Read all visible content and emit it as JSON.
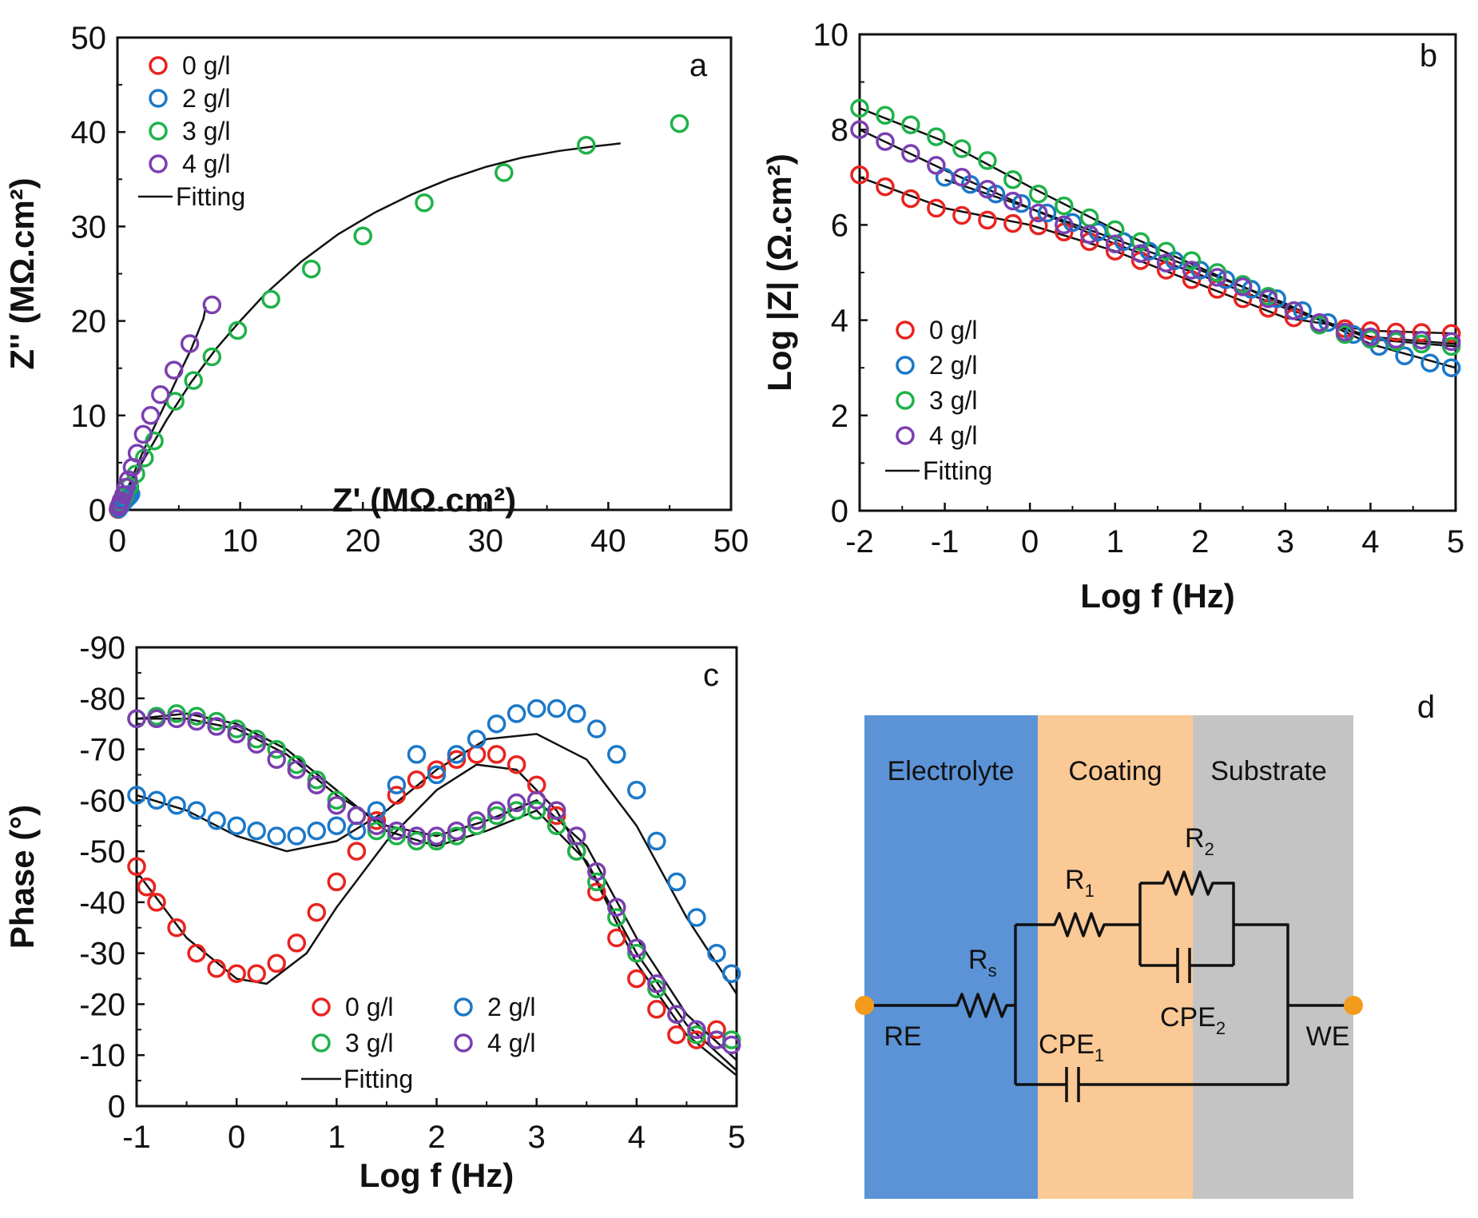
{
  "colors": {
    "zero": "#e8231f",
    "two": "#1b78c8",
    "three": "#1fb24a",
    "four": "#7b3fb0",
    "fit": "#111111",
    "electrolyte": "#5b93d6",
    "coating": "#fbc995",
    "substrate": "#c4c4c4",
    "node": "#f39b1d"
  },
  "legend_labels": {
    "zero": "0 g/l",
    "two": "2 g/l",
    "three": "3 g/l",
    "four": "4 g/l",
    "fit": "Fitting"
  },
  "chart_data": [
    {
      "id": "a",
      "type": "scatter",
      "panel_label": "a",
      "title": "",
      "xlabel": "Z' (MΩ.cm²)",
      "ylabel": "Z'' (MΩ.cm²)",
      "xlim": [
        0,
        50
      ],
      "ylim": [
        0,
        50
      ],
      "xticks": [
        0,
        10,
        20,
        30,
        40,
        50
      ],
      "yticks": [
        0,
        10,
        20,
        30,
        40,
        50
      ],
      "legend_position": "top-left",
      "series": [
        {
          "name": "0 g/l",
          "color_key": "zero",
          "x": [
            0.05,
            0.1,
            0.15,
            0.2,
            0.25,
            0.3,
            0.35
          ],
          "y": [
            0.05,
            0.15,
            0.3,
            0.45,
            0.6,
            0.75,
            0.9
          ]
        },
        {
          "name": "2 g/l",
          "color_key": "two",
          "x": [
            0.1,
            0.2,
            0.3,
            0.4,
            0.55,
            0.7,
            0.85,
            1.0,
            1.1
          ],
          "y": [
            0.1,
            0.3,
            0.5,
            0.7,
            0.9,
            1.1,
            1.3,
            1.5,
            1.7
          ]
        },
        {
          "name": "3 g/l",
          "color_key": "three",
          "x": [
            0.3,
            0.6,
            1.0,
            1.5,
            2.2,
            3.0,
            4.7,
            6.2,
            7.7,
            9.8,
            12.5,
            15.8,
            20.0,
            25.0,
            31.5,
            38.2,
            45.8
          ],
          "y": [
            0.8,
            1.5,
            2.5,
            3.8,
            5.5,
            7.3,
            11.5,
            13.7,
            16.2,
            19.0,
            22.3,
            25.5,
            29.0,
            32.5,
            35.7,
            38.6,
            40.9
          ]
        },
        {
          "name": "4 g/l",
          "color_key": "four",
          "x": [
            0.1,
            0.2,
            0.3,
            0.5,
            0.7,
            0.9,
            1.2,
            1.6,
            2.1,
            2.7,
            3.5,
            4.6,
            5.9,
            7.7
          ],
          "y": [
            0.3,
            0.6,
            1.0,
            1.6,
            2.4,
            3.2,
            4.5,
            6.0,
            8.0,
            10.0,
            12.2,
            14.8,
            17.6,
            21.7
          ]
        }
      ],
      "fits": [
        {
          "name": "Fitting 3 g/l",
          "x": [
            0,
            2,
            4,
            6,
            8,
            10,
            12,
            15,
            18,
            21,
            24,
            27,
            30,
            33,
            36,
            39,
            41
          ],
          "y": [
            0,
            5.0,
            9.5,
            13.5,
            17.0,
            20.0,
            22.8,
            26.3,
            29.2,
            31.5,
            33.4,
            35.0,
            36.3,
            37.3,
            38.0,
            38.5,
            38.8
          ]
        },
        {
          "name": "Fitting 4 g/l",
          "x": [
            0,
            1,
            2,
            3,
            4,
            5,
            6,
            7,
            7.2
          ],
          "y": [
            0,
            2.8,
            5.9,
            8.8,
            11.5,
            14.3,
            17.0,
            20.2,
            21.5
          ]
        }
      ]
    },
    {
      "id": "b",
      "type": "scatter",
      "panel_label": "b",
      "title": "",
      "xlabel": "Log f (Hz)",
      "ylabel": "Log |Z| (Ω.cm²)",
      "xlim": [
        -2,
        5
      ],
      "ylim": [
        0,
        10
      ],
      "xticks": [
        -2,
        -1,
        0,
        1,
        2,
        3,
        4,
        5
      ],
      "yticks": [
        0,
        2,
        4,
        6,
        8,
        10
      ],
      "legend_position": "bottom-left",
      "series": [
        {
          "name": "0 g/l",
          "color_key": "zero",
          "x": [
            -2.0,
            -1.7,
            -1.4,
            -1.1,
            -0.8,
            -0.5,
            -0.2,
            0.1,
            0.4,
            0.7,
            1.0,
            1.3,
            1.6,
            1.9,
            2.2,
            2.5,
            2.8,
            3.1,
            3.4,
            3.7,
            4.0,
            4.3,
            4.6,
            4.95
          ],
          "y": [
            7.05,
            6.8,
            6.55,
            6.35,
            6.2,
            6.1,
            6.03,
            5.98,
            5.85,
            5.65,
            5.45,
            5.25,
            5.05,
            4.85,
            4.65,
            4.45,
            4.25,
            4.05,
            3.9,
            3.82,
            3.78,
            3.75,
            3.74,
            3.72
          ]
        },
        {
          "name": "2 g/l",
          "color_key": "two",
          "x": [
            -1.0,
            -0.7,
            -0.4,
            -0.1,
            0.2,
            0.5,
            0.8,
            1.1,
            1.4,
            1.7,
            2.0,
            2.3,
            2.6,
            2.9,
            3.2,
            3.5,
            3.8,
            4.1,
            4.4,
            4.7,
            4.95
          ],
          "y": [
            7.0,
            6.85,
            6.65,
            6.45,
            6.25,
            6.05,
            5.85,
            5.65,
            5.45,
            5.25,
            5.05,
            4.85,
            4.65,
            4.45,
            4.2,
            3.95,
            3.7,
            3.45,
            3.25,
            3.1,
            3.0
          ]
        },
        {
          "name": "3 g/l",
          "color_key": "three",
          "x": [
            -2.0,
            -1.7,
            -1.4,
            -1.1,
            -0.8,
            -0.5,
            -0.2,
            0.1,
            0.4,
            0.7,
            1.0,
            1.3,
            1.6,
            1.9,
            2.2,
            2.5,
            2.8,
            3.1,
            3.4,
            3.7,
            4.0,
            4.3,
            4.6,
            4.95
          ],
          "y": [
            8.45,
            8.3,
            8.1,
            7.85,
            7.6,
            7.35,
            6.95,
            6.65,
            6.4,
            6.15,
            5.9,
            5.65,
            5.45,
            5.25,
            5.0,
            4.75,
            4.5,
            4.2,
            3.9,
            3.7,
            3.6,
            3.55,
            3.5,
            3.45
          ]
        },
        {
          "name": "4 g/l",
          "color_key": "four",
          "x": [
            -2.0,
            -1.7,
            -1.4,
            -1.1,
            -0.8,
            -0.5,
            -0.2,
            0.1,
            0.4,
            0.7,
            1.0,
            1.3,
            1.6,
            1.9,
            2.2,
            2.5,
            2.8,
            3.1,
            3.4,
            3.7,
            4.0,
            4.3,
            4.6,
            4.95
          ],
          "y": [
            8.0,
            7.75,
            7.5,
            7.25,
            7.0,
            6.75,
            6.5,
            6.25,
            6.0,
            5.8,
            5.6,
            5.4,
            5.2,
            5.05,
            4.9,
            4.7,
            4.45,
            4.2,
            3.95,
            3.75,
            3.65,
            3.6,
            3.58,
            3.55
          ]
        }
      ],
      "fits": [
        {
          "name": "Fitting 0 g/l",
          "x": [
            -2,
            -1,
            0,
            1,
            2,
            3,
            4,
            5
          ],
          "y": [
            7.0,
            6.35,
            6.0,
            5.45,
            4.75,
            4.05,
            3.78,
            3.72
          ]
        },
        {
          "name": "Fitting 3 g/l",
          "x": [
            -2,
            -1,
            0,
            1,
            2,
            3,
            4,
            5
          ],
          "y": [
            8.45,
            7.75,
            6.8,
            5.9,
            5.1,
            4.3,
            3.6,
            3.45
          ]
        },
        {
          "name": "Fitting 4 g/l",
          "x": [
            -2,
            -1,
            0,
            1,
            2,
            3,
            4,
            5
          ],
          "y": [
            8.0,
            7.15,
            6.35,
            5.6,
            4.95,
            4.25,
            3.65,
            3.5
          ]
        },
        {
          "name": "Fitting 2 g/l",
          "x": [
            -1,
            0,
            1,
            2,
            3,
            4,
            5
          ],
          "y": [
            6.95,
            6.35,
            5.7,
            5.05,
            4.35,
            3.5,
            3.0
          ]
        }
      ]
    },
    {
      "id": "c",
      "type": "scatter",
      "panel_label": "c",
      "title": "",
      "xlabel": "Log f (Hz)",
      "ylabel": "Phase (°)",
      "xlim": [
        -1,
        5
      ],
      "ylim": [
        0,
        -90
      ],
      "xticks": [
        -1,
        0,
        1,
        2,
        3,
        4,
        5
      ],
      "yticks": [
        0,
        -10,
        -20,
        -30,
        -40,
        -50,
        -60,
        -70,
        -80,
        -90
      ],
      "legend_position": "bottom-center",
      "series": [
        {
          "name": "0 g/l",
          "color_key": "zero",
          "x": [
            -1.0,
            -0.9,
            -0.8,
            -0.6,
            -0.4,
            -0.2,
            0.0,
            0.2,
            0.4,
            0.6,
            0.8,
            1.0,
            1.2,
            1.4,
            1.6,
            1.8,
            2.0,
            2.2,
            2.4,
            2.6,
            2.8,
            3.0,
            3.2,
            3.4,
            3.6,
            3.8,
            4.0,
            4.2,
            4.4,
            4.6,
            4.8
          ],
          "y": [
            -47,
            -43,
            -40,
            -35,
            -30,
            -27,
            -26,
            -26,
            -28,
            -32,
            -38,
            -44,
            -50,
            -56,
            -61,
            -64,
            -66,
            -68,
            -69,
            -69,
            -67,
            -63,
            -57,
            -50,
            -42,
            -33,
            -25,
            -19,
            -14,
            -13,
            -15
          ]
        },
        {
          "name": "2 g/l",
          "color_key": "two",
          "x": [
            -1.0,
            -0.8,
            -0.6,
            -0.4,
            -0.2,
            0.0,
            0.2,
            0.4,
            0.6,
            0.8,
            1.0,
            1.2,
            1.4,
            1.6,
            1.8,
            2.0,
            2.2,
            2.4,
            2.6,
            2.8,
            3.0,
            3.2,
            3.4,
            3.6,
            3.8,
            4.0,
            4.2,
            4.4,
            4.6,
            4.8,
            4.95
          ],
          "y": [
            -61,
            -60,
            -59,
            -58,
            -56,
            -55,
            -54,
            -53,
            -53,
            -54,
            -55,
            -54,
            -58,
            -63,
            -69,
            -65,
            -69,
            -72,
            -75,
            -77,
            -78,
            -78,
            -77,
            -74,
            -69,
            -62,
            -52,
            -44,
            -37,
            -30,
            -26
          ]
        },
        {
          "name": "3 g/l",
          "color_key": "three",
          "x": [
            -1.0,
            -0.8,
            -0.6,
            -0.4,
            -0.2,
            0.0,
            0.2,
            0.4,
            0.6,
            0.8,
            1.0,
            1.2,
            1.4,
            1.6,
            1.8,
            2.0,
            2.2,
            2.4,
            2.6,
            2.8,
            3.0,
            3.2,
            3.4,
            3.6,
            3.8,
            4.0,
            4.2,
            4.4,
            4.6,
            4.8,
            4.95
          ],
          "y": [
            -76,
            -76.5,
            -77,
            -76.5,
            -75.5,
            -74,
            -72,
            -70,
            -67,
            -64,
            -60,
            -57,
            -54,
            -53,
            -52,
            -52,
            -53,
            -55,
            -57,
            -58,
            -58,
            -55,
            -50,
            -44,
            -37,
            -30,
            -23,
            -18,
            -14,
            -13,
            -13
          ]
        },
        {
          "name": "4 g/l",
          "color_key": "four",
          "x": [
            -1.0,
            -0.8,
            -0.6,
            -0.4,
            -0.2,
            0.0,
            0.2,
            0.4,
            0.6,
            0.8,
            1.0,
            1.2,
            1.4,
            1.6,
            1.8,
            2.0,
            2.2,
            2.4,
            2.6,
            2.8,
            3.0,
            3.2,
            3.4,
            3.6,
            3.8,
            4.0,
            4.2,
            4.4,
            4.6,
            4.8,
            4.95
          ],
          "y": [
            -76,
            -76,
            -76,
            -75.5,
            -74.5,
            -73,
            -71,
            -68,
            -66,
            -63,
            -59,
            -57,
            -55,
            -54,
            -53,
            -53,
            -54,
            -56,
            -58,
            -59.5,
            -60,
            -58,
            -53,
            -46,
            -39,
            -31,
            -24,
            -18,
            -15,
            -13,
            -12
          ]
        }
      ],
      "fits": [
        {
          "name": "Fitting 0 g/l",
          "x": [
            -1,
            -0.5,
            0,
            0.3,
            0.7,
            1,
            1.5,
            2,
            2.4,
            2.8,
            3.2,
            3.6,
            4,
            4.5,
            5
          ],
          "y": [
            -46,
            -33,
            -25,
            -24,
            -30,
            -39,
            -52,
            -62,
            -67,
            -66,
            -58,
            -44,
            -28,
            -14,
            -6
          ]
        },
        {
          "name": "Fitting 2 g/l",
          "x": [
            -1,
            -0.5,
            0,
            0.5,
            1,
            1.5,
            2,
            2.5,
            3,
            3.5,
            4,
            4.5,
            5
          ],
          "y": [
            -61,
            -58,
            -53,
            -50,
            -52,
            -58,
            -66,
            -72,
            -73,
            -68,
            -55,
            -37,
            -22
          ]
        },
        {
          "name": "Fitting 3 g/l",
          "x": [
            -1,
            -0.5,
            0,
            0.5,
            1,
            1.5,
            2,
            2.5,
            3,
            3.5,
            4,
            4.5,
            5
          ],
          "y": [
            -76,
            -77,
            -75,
            -70,
            -62,
            -54,
            -51,
            -54,
            -58,
            -48,
            -30,
            -16,
            -7
          ]
        },
        {
          "name": "Fitting 4 g/l",
          "x": [
            -1,
            -0.5,
            0,
            0.5,
            1,
            1.5,
            2,
            2.5,
            3,
            3.5,
            4,
            4.5,
            5
          ],
          "y": [
            -76,
            -76,
            -74,
            -69,
            -61,
            -55,
            -53,
            -56,
            -60,
            -51,
            -33,
            -18,
            -9
          ]
        }
      ]
    }
  ],
  "circuit": {
    "panel_label": "d",
    "regions": [
      "Electrolyte",
      "Coating",
      "Substrate"
    ],
    "left_terminal": "RE",
    "right_terminal": "WE",
    "components": {
      "rs": {
        "symbol": "R",
        "sub": "s"
      },
      "r1": {
        "symbol": "R",
        "sub": "1"
      },
      "r2": {
        "symbol": "R",
        "sub": "2"
      },
      "cpe1": {
        "symbol": "CPE",
        "sub": "1"
      },
      "cpe2": {
        "symbol": "CPE",
        "sub": "2"
      }
    }
  }
}
